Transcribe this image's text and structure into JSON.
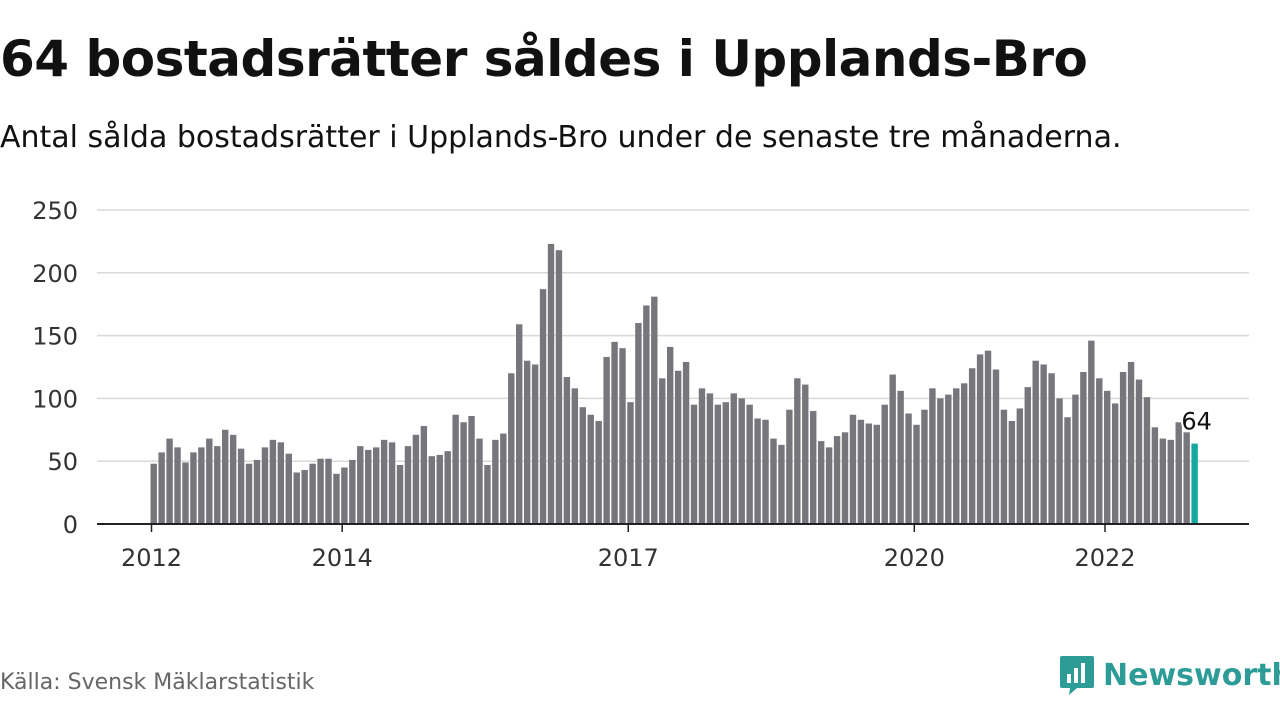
{
  "title": "64 bostadsrätter såldes i Upplands-Bro",
  "subtitle": "Antal sålda bostadsrätter i Upplands-Bro under de senaste tre månaderna.",
  "source": "Källa: Svensk Mäklarstatistik",
  "brand": "Newsworthy",
  "colors": {
    "bar": "#76767c",
    "highlight": "#15a8a0",
    "grid": "#d9d9d9",
    "axis": "#222222",
    "brand": "#2e9c96"
  },
  "chart_data": {
    "type": "bar",
    "x_start": "2012-01",
    "x_unit": "month",
    "ylim": [
      0,
      250
    ],
    "yticks": [
      0,
      50,
      100,
      150,
      200,
      250
    ],
    "xticks": [
      "2012",
      "2014",
      "2017",
      "2020",
      "2022"
    ],
    "grid": true,
    "highlight_last": true,
    "last_label": "64",
    "values": [
      48,
      57,
      68,
      61,
      49,
      57,
      61,
      68,
      62,
      75,
      71,
      60,
      48,
      51,
      61,
      67,
      65,
      56,
      41,
      43,
      48,
      52,
      52,
      40,
      45,
      51,
      62,
      59,
      61,
      67,
      65,
      47,
      62,
      71,
      78,
      54,
      55,
      58,
      87,
      81,
      86,
      68,
      47,
      67,
      72,
      120,
      159,
      130,
      127,
      187,
      223,
      218,
      117,
      108,
      93,
      87,
      82,
      133,
      145,
      140,
      97,
      160,
      174,
      181,
      116,
      141,
      122,
      129,
      95,
      108,
      104,
      95,
      97,
      104,
      100,
      95,
      84,
      83,
      68,
      63,
      91,
      116,
      111,
      90,
      66,
      61,
      70,
      73,
      87,
      83,
      80,
      79,
      95,
      119,
      106,
      88,
      79,
      91,
      108,
      100,
      103,
      108,
      112,
      124,
      135,
      138,
      123,
      91,
      82,
      92,
      109,
      130,
      127,
      120,
      100,
      85,
      103,
      121,
      146,
      116,
      106,
      96,
      121,
      129,
      115,
      101,
      77,
      68,
      67,
      81,
      73,
      64
    ]
  }
}
